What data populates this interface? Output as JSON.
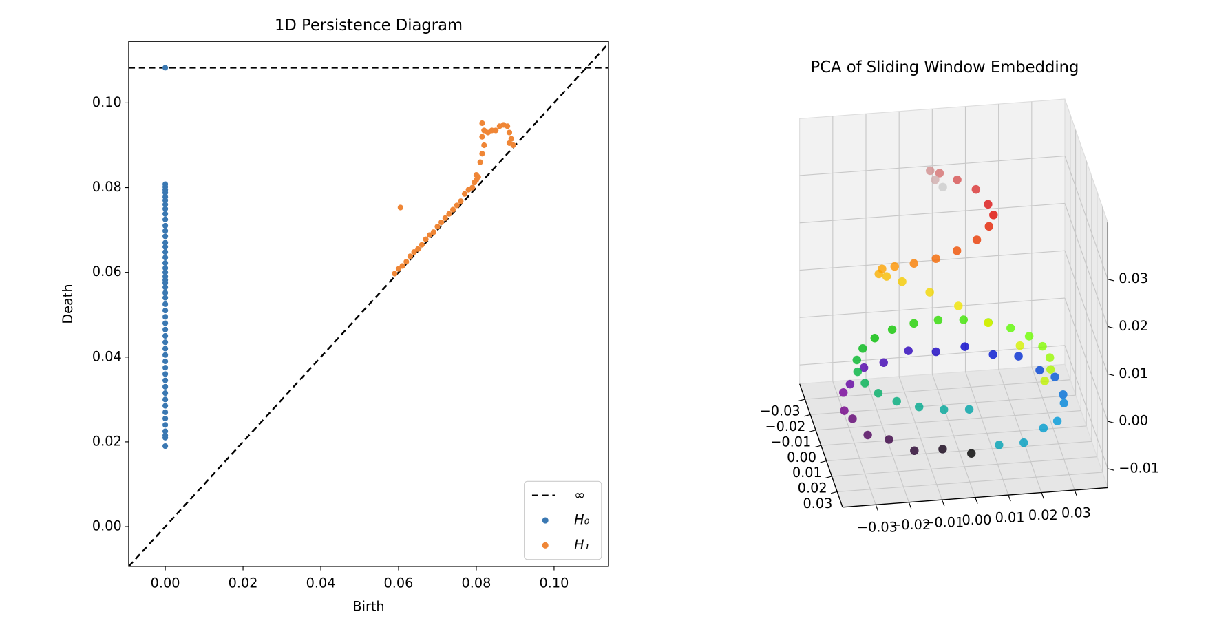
{
  "chart_data": [
    {
      "type": "scatter",
      "title": "1D Persistence Diagram",
      "x_label": "Birth",
      "y_label": "Death",
      "xlim": [
        -0.0094,
        0.114
      ],
      "ylim": [
        -0.0094,
        0.1145
      ],
      "xticks": [
        {
          "value": 0,
          "label": "0.00"
        },
        {
          "value": 0.02,
          "label": "0.02"
        },
        {
          "value": 0.04,
          "label": "0.04"
        },
        {
          "value": 0.06,
          "label": "0.06"
        },
        {
          "value": 0.08,
          "label": "0.08"
        },
        {
          "value": 0.1,
          "label": "0.10"
        }
      ],
      "yticks": [
        {
          "value": 0,
          "label": "0.00"
        },
        {
          "value": 0.02,
          "label": "0.02"
        },
        {
          "value": 0.04,
          "label": "0.04"
        },
        {
          "value": 0.06,
          "label": "0.06"
        },
        {
          "value": 0.08,
          "label": "0.08"
        },
        {
          "value": 0.1,
          "label": "0.10"
        }
      ],
      "diagonal": true,
      "legend": "lower right",
      "series": [
        {
          "name": "∞",
          "color": "#000000",
          "linestyle": "dashed",
          "y": [
            0.1083
          ]
        },
        {
          "name": "H₀",
          "color": "#3a78b2",
          "x": [
            0,
            0,
            0,
            0,
            0,
            0,
            0,
            0,
            0,
            0,
            0,
            0,
            0,
            0,
            0,
            0,
            0,
            0,
            0,
            0,
            0,
            0,
            0,
            0,
            0,
            0,
            0,
            0,
            0,
            0,
            0,
            0,
            0,
            0,
            0,
            0,
            0,
            0,
            0,
            0,
            0,
            0,
            0,
            0,
            0,
            0,
            0,
            0,
            0,
            0,
            0
          ],
          "y": [
            0.1083,
            0.0808,
            0.0802,
            0.0795,
            0.0788,
            0.0778,
            0.077,
            0.076,
            0.075,
            0.0738,
            0.0725,
            0.071,
            0.0698,
            0.0685,
            0.067,
            0.066,
            0.0648,
            0.0635,
            0.0622,
            0.061,
            0.06,
            0.059,
            0.0582,
            0.0575,
            0.0565,
            0.0552,
            0.054,
            0.0525,
            0.051,
            0.0495,
            0.048,
            0.0465,
            0.045,
            0.0435,
            0.042,
            0.0405,
            0.039,
            0.0375,
            0.036,
            0.0345,
            0.033,
            0.0315,
            0.03,
            0.0285,
            0.027,
            0.0255,
            0.024,
            0.0225,
            0.0215,
            0.021,
            0.019
          ]
        },
        {
          "name": "H₁",
          "color": "#ef8636",
          "x": [
            0.059,
            0.06,
            0.061,
            0.062,
            0.063,
            0.064,
            0.065,
            0.066,
            0.067,
            0.068,
            0.069,
            0.07,
            0.071,
            0.072,
            0.073,
            0.074,
            0.075,
            0.076,
            0.077,
            0.078,
            0.079,
            0.0795,
            0.08,
            0.0805,
            0.08,
            0.081,
            0.0815,
            0.082,
            0.0815,
            0.082,
            0.0815,
            0.083,
            0.084,
            0.085,
            0.086,
            0.087,
            0.088,
            0.0885,
            0.089,
            0.0895,
            0.0885,
            0.0605
          ],
          "y": [
            0.0597,
            0.0608,
            0.0615,
            0.0625,
            0.0638,
            0.0648,
            0.0655,
            0.0665,
            0.0678,
            0.0688,
            0.0695,
            0.0708,
            0.0718,
            0.0728,
            0.0738,
            0.0748,
            0.0758,
            0.0768,
            0.0785,
            0.0795,
            0.08,
            0.0812,
            0.0818,
            0.0825,
            0.083,
            0.086,
            0.088,
            0.09,
            0.092,
            0.0935,
            0.0952,
            0.093,
            0.0935,
            0.0935,
            0.0945,
            0.0948,
            0.0945,
            0.093,
            0.0915,
            0.09,
            0.0905,
            0.0753
          ]
        }
      ]
    },
    {
      "type": "scatter3d",
      "title": "PCA of Sliding Window Embedding",
      "xlim": [
        -0.04,
        0.04
      ],
      "ylim": [
        -0.04,
        0.04
      ],
      "zlim": [
        -0.014,
        0.042
      ],
      "xticks": [
        {
          "value": -0.03,
          "label": "−0.03"
        },
        {
          "value": -0.02,
          "label": "−0.02"
        },
        {
          "value": -0.01,
          "label": "−0.01"
        },
        {
          "value": 0,
          "label": "0.00"
        },
        {
          "value": 0.01,
          "label": "0.01"
        },
        {
          "value": 0.02,
          "label": "0.02"
        },
        {
          "value": 0.03,
          "label": "0.03"
        }
      ],
      "yticks": [
        {
          "value": -0.03,
          "label": "−0.03"
        },
        {
          "value": -0.02,
          "label": "−0.02"
        },
        {
          "value": -0.01,
          "label": "−0.01"
        },
        {
          "value": 0,
          "label": "0.00"
        },
        {
          "value": 0.01,
          "label": "0.01"
        },
        {
          "value": 0.02,
          "label": "0.02"
        },
        {
          "value": 0.03,
          "label": "0.03"
        }
      ],
      "zticks": [
        {
          "value": -0.01,
          "label": "−0.01"
        },
        {
          "value": 0,
          "label": "0.00"
        },
        {
          "value": 0.01,
          "label": "0.01"
        },
        {
          "value": 0.02,
          "label": "0.02"
        },
        {
          "value": 0.03,
          "label": "0.03"
        }
      ],
      "grid": true,
      "colormap": [
        "#000000",
        "#7d0096",
        "#0000cc",
        "#0099dd",
        "#00aa88",
        "#00bb00",
        "#66ff00",
        "#eeee00",
        "#ff9900",
        "#dd0000",
        "#cccccc"
      ],
      "x": [
        0,
        -0.0085,
        -0.0165,
        -0.0233,
        -0.0286,
        -0.0319,
        -0.033,
        -0.0319,
        -0.0286,
        -0.0233,
        -0.0165,
        -0.0085,
        0,
        0.0085,
        0.0165,
        0.0233,
        0.0286,
        0.0319,
        0.033,
        0.0319,
        0.0286,
        0.0233,
        0.0165,
        0.0085,
        0,
        -0.0075,
        -0.0145,
        -0.0205,
        -0.0251,
        -0.028,
        -0.029,
        -0.028,
        -0.0251,
        -0.0205,
        -0.0145,
        -0.0075,
        0,
        0.0075,
        0.0145,
        0.0205,
        0.0251,
        0.028,
        0.029,
        0.028,
        0.0251,
        0.02,
        0.012,
        0.004,
        -0.004,
        -0.012,
        -0.017,
        -0.02,
        -0.02,
        -0.017,
        -0.012,
        -0.006,
        0,
        0.006,
        0.01,
        0.012,
        0.011,
        0.008,
        0.003,
        -0.002,
        -0.005,
        -0.004,
        -0.002
      ],
      "y": [
        0.033,
        0.0319,
        0.0286,
        0.0233,
        0.0165,
        0.0085,
        0,
        -0.0085,
        -0.0165,
        -0.0233,
        -0.0286,
        -0.0319,
        -0.033,
        -0.0319,
        -0.0286,
        -0.0233,
        -0.0165,
        -0.0085,
        0,
        0.0085,
        0.0165,
        0.0233,
        0.0286,
        0.0319,
        0.029,
        0.028,
        0.0251,
        0.0205,
        0.0145,
        0.0075,
        0,
        -0.0075,
        -0.0145,
        -0.0205,
        -0.0251,
        -0.028,
        -0.029,
        -0.028,
        -0.0251,
        -0.0205,
        -0.0145,
        -0.0075,
        0,
        0.0075,
        0.0145,
        0,
        -0.01,
        -0.016,
        -0.02,
        -0.022,
        -0.02,
        -0.016,
        -0.01,
        -0.005,
        0,
        0.004,
        0.006,
        0.006,
        0.004,
        0,
        -0.004,
        -0.008,
        -0.012,
        -0.014,
        -0.013,
        -0.01,
        -0.008
      ],
      "z": [
        -0.007,
        -0.006,
        -0.007,
        -0.006,
        -0.007,
        -0.006,
        -0.007,
        -0.006,
        -0.007,
        -0.006,
        -0.007,
        -0.006,
        -0.007,
        -0.006,
        -0.007,
        -0.006,
        -0.007,
        -0.006,
        -0.007,
        -0.006,
        -0.007,
        -0.006,
        -0.007,
        -0.006,
        0.001,
        0.001,
        0.001,
        0.001,
        0.001,
        0.001,
        0.001,
        0.001,
        0.001,
        0.001,
        0.001,
        0.001,
        0.001,
        0.001,
        0.001,
        0.001,
        0.001,
        0.001,
        0.001,
        0.001,
        0.001,
        0.004,
        0.006,
        0.008,
        0.01,
        0.012,
        0.014,
        0.016,
        0.019,
        0.021,
        0.023,
        0.025,
        0.027,
        0.029,
        0.031,
        0.032,
        0.033,
        0.035,
        0.036,
        0.037,
        0.038,
        0.037,
        0.036
      ]
    }
  ]
}
